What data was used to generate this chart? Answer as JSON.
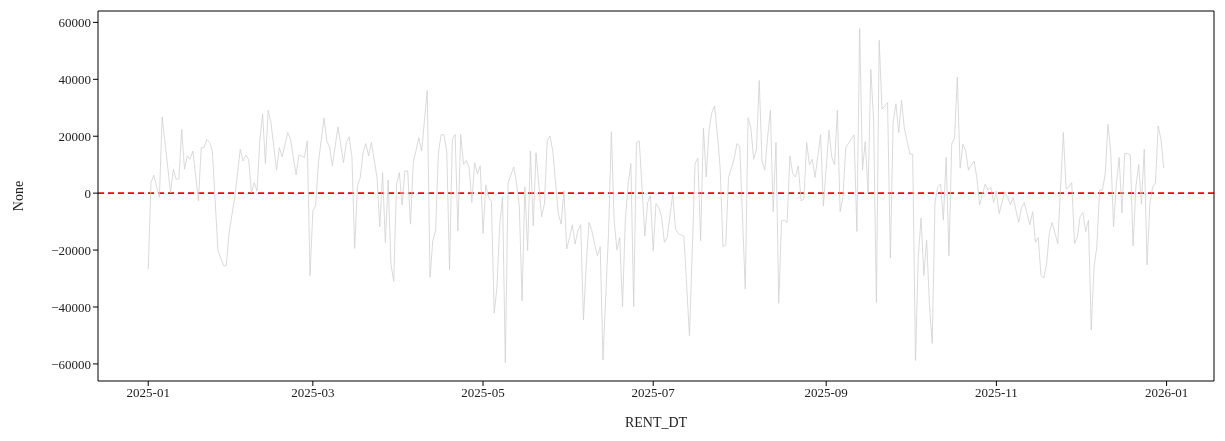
{
  "chart_data": {
    "type": "line",
    "xlabel": "RENT_DT",
    "ylabel": "None",
    "grid": false,
    "xlim": [
      "2024-12-14",
      "2026-01-18"
    ],
    "xticks": [
      "2025-01",
      "2025-03",
      "2025-05",
      "2025-07",
      "2025-09",
      "2025-11",
      "2026-01"
    ],
    "ylim": [
      -66000,
      64000
    ],
    "yticks": [
      -60000,
      -40000,
      -20000,
      0,
      20000,
      40000,
      60000
    ],
    "ref_lines": [
      {
        "axis": "y",
        "value": 0,
        "color": "#ff0000",
        "line_style": "dashed"
      }
    ],
    "x": [
      "2025-01-01",
      "2025-01-02",
      "2025-01-03",
      "2025-01-05",
      "2025-01-06",
      "2025-01-09",
      "2025-01-10",
      "2025-01-11",
      "2025-01-12",
      "2025-01-13",
      "2025-01-14",
      "2025-01-15",
      "2025-01-16",
      "2025-01-17",
      "2025-01-19",
      "2025-01-20",
      "2025-01-21",
      "2025-01-22",
      "2025-01-23",
      "2025-01-24",
      "2025-01-26",
      "2025-01-28",
      "2025-01-29",
      "2025-01-30",
      "2025-02-01",
      "2025-02-03",
      "2025-02-04",
      "2025-02-05",
      "2025-02-06",
      "2025-02-07",
      "2025-02-08",
      "2025-02-09",
      "2025-02-10",
      "2025-02-11",
      "2025-02-12",
      "2025-02-13",
      "2025-02-14",
      "2025-02-16",
      "2025-02-17",
      "2025-02-18",
      "2025-02-20",
      "2025-02-21",
      "2025-02-23",
      "2025-02-24",
      "2025-02-26",
      "2025-02-27",
      "2025-02-28",
      "2025-03-01",
      "2025-03-02",
      "2025-03-03",
      "2025-03-05",
      "2025-03-06",
      "2025-03-07",
      "2025-03-08",
      "2025-03-10",
      "2025-03-12",
      "2025-03-13",
      "2025-03-14",
      "2025-03-15",
      "2025-03-16",
      "2025-03-17",
      "2025-03-18",
      "2025-03-19",
      "2025-03-20",
      "2025-03-21",
      "2025-03-22",
      "2025-03-24",
      "2025-03-25",
      "2025-03-26",
      "2025-03-27",
      "2025-03-28",
      "2025-03-29",
      "2025-03-30",
      "2025-03-31",
      "2025-04-01",
      "2025-04-02",
      "2025-04-03",
      "2025-04-04",
      "2025-04-05",
      "2025-04-06",
      "2025-04-08",
      "2025-04-09",
      "2025-04-11",
      "2025-04-12",
      "2025-04-13",
      "2025-04-14",
      "2025-04-15",
      "2025-04-16",
      "2025-04-17",
      "2025-04-18",
      "2025-04-19",
      "2025-04-20",
      "2025-04-21",
      "2025-04-22",
      "2025-04-23",
      "2025-04-24",
      "2025-04-25",
      "2025-04-26",
      "2025-04-27",
      "2025-04-28",
      "2025-04-29",
      "2025-04-30",
      "2025-05-01",
      "2025-05-02",
      "2025-05-03",
      "2025-05-04",
      "2025-05-05",
      "2025-05-06",
      "2025-05-07",
      "2025-05-08",
      "2025-05-09",
      "2025-05-10",
      "2025-05-12",
      "2025-05-13",
      "2025-05-14",
      "2025-05-15",
      "2025-05-16",
      "2025-05-17",
      "2025-05-18",
      "2025-05-19",
      "2025-05-20",
      "2025-05-22",
      "2025-05-23",
      "2025-05-24",
      "2025-05-25",
      "2025-05-26",
      "2025-05-28",
      "2025-05-29",
      "2025-05-30",
      "2025-05-31",
      "2025-06-01",
      "2025-06-02",
      "2025-06-03",
      "2025-06-04",
      "2025-06-05",
      "2025-06-06",
      "2025-06-07",
      "2025-06-08",
      "2025-06-09",
      "2025-06-10",
      "2025-06-11",
      "2025-06-12",
      "2025-06-13",
      "2025-06-15",
      "2025-06-16",
      "2025-06-17",
      "2025-06-18",
      "2025-06-19",
      "2025-06-20",
      "2025-06-21",
      "2025-06-22",
      "2025-06-23",
      "2025-06-24",
      "2025-06-25",
      "2025-06-26",
      "2025-06-28",
      "2025-06-29",
      "2025-06-30",
      "2025-07-01",
      "2025-07-02",
      "2025-07-03",
      "2025-07-04",
      "2025-07-05",
      "2025-07-06",
      "2025-07-08",
      "2025-07-09",
      "2025-07-10",
      "2025-07-12",
      "2025-07-14",
      "2025-07-16",
      "2025-07-17",
      "2025-07-18",
      "2025-07-19",
      "2025-07-20",
      "2025-07-21",
      "2025-07-22",
      "2025-07-23",
      "2025-07-24",
      "2025-07-25",
      "2025-07-26",
      "2025-07-27",
      "2025-07-28",
      "2025-07-29",
      "2025-07-30",
      "2025-07-31",
      "2025-08-01",
      "2025-08-03",
      "2025-08-04",
      "2025-08-05",
      "2025-08-06",
      "2025-08-07",
      "2025-08-08",
      "2025-08-09",
      "2025-08-10",
      "2025-08-11",
      "2025-08-12",
      "2025-08-13",
      "2025-08-14",
      "2025-08-15",
      "2025-08-16",
      "2025-08-17",
      "2025-08-18",
      "2025-08-19",
      "2025-08-20",
      "2025-08-21",
      "2025-08-22",
      "2025-08-23",
      "2025-08-24",
      "2025-08-25",
      "2025-08-26",
      "2025-08-27",
      "2025-08-28",
      "2025-08-30",
      "2025-08-31",
      "2025-09-02",
      "2025-09-03",
      "2025-09-04",
      "2025-09-05",
      "2025-09-06",
      "2025-09-07",
      "2025-09-08",
      "2025-09-11",
      "2025-09-12",
      "2025-09-13",
      "2025-09-14",
      "2025-09-15",
      "2025-09-16",
      "2025-09-17",
      "2025-09-18",
      "2025-09-19",
      "2025-09-20",
      "2025-09-21",
      "2025-09-22",
      "2025-09-23",
      "2025-09-24",
      "2025-09-25",
      "2025-09-26",
      "2025-09-27",
      "2025-09-28",
      "2025-09-29",
      "2025-10-01",
      "2025-10-02",
      "2025-10-03",
      "2025-10-04",
      "2025-10-05",
      "2025-10-06",
      "2025-10-07",
      "2025-10-08",
      "2025-10-09",
      "2025-10-10",
      "2025-10-11",
      "2025-10-12",
      "2025-10-13",
      "2025-10-14",
      "2025-10-15",
      "2025-10-16",
      "2025-10-17",
      "2025-10-18",
      "2025-10-19",
      "2025-10-20",
      "2025-10-21",
      "2025-10-22",
      "2025-10-24",
      "2025-10-25",
      "2025-10-26",
      "2025-10-28",
      "2025-10-29",
      "2025-10-30",
      "2025-10-31",
      "2025-11-01",
      "2025-11-02",
      "2025-11-04",
      "2025-11-05",
      "2025-11-06",
      "2025-11-07",
      "2025-11-09",
      "2025-11-10",
      "2025-11-11",
      "2025-11-13",
      "2025-11-14",
      "2025-11-15",
      "2025-11-16",
      "2025-11-17",
      "2025-11-18",
      "2025-11-19",
      "2025-11-20",
      "2025-11-21",
      "2025-11-23",
      "2025-11-25",
      "2025-11-26",
      "2025-11-27",
      "2025-11-28",
      "2025-11-29",
      "2025-11-30",
      "2025-12-01",
      "2025-12-02",
      "2025-12-03",
      "2025-12-04",
      "2025-12-05",
      "2025-12-06",
      "2025-12-07",
      "2025-12-08",
      "2025-12-09",
      "2025-12-10",
      "2025-12-11",
      "2025-12-12",
      "2025-12-13",
      "2025-12-14",
      "2025-12-15",
      "2025-12-16",
      "2025-12-17",
      "2025-12-18",
      "2025-12-19",
      "2025-12-20",
      "2025-12-21",
      "2025-12-22",
      "2025-12-23",
      "2025-12-24",
      "2025-12-25",
      "2025-12-26",
      "2025-12-27",
      "2025-12-28",
      "2025-12-29",
      "2025-12-30",
      "2025-12-31"
    ],
    "series": [
      {
        "color": "#d0d0d0",
        "values": [
          -26700,
          3700,
          6300,
          -1500,
          26800,
          200,
          8400,
          4900,
          5000,
          22400,
          8400,
          13100,
          11900,
          14800,
          -2700,
          16000,
          16000,
          18900,
          17800,
          14800,
          -20200,
          -25500,
          -25500,
          -13800,
          -1500,
          15400,
          11300,
          13400,
          11900,
          200,
          3700,
          700,
          18400,
          27900,
          10400,
          29100,
          24800,
          8100,
          16000,
          12700,
          21300,
          18900,
          6400,
          13400,
          12500,
          18400,
          -29000,
          -6200,
          -4500,
          10700,
          26400,
          18400,
          16200,
          9600,
          23300,
          10700,
          17800,
          19800,
          13100,
          -19400,
          2600,
          5500,
          14200,
          17400,
          13100,
          17800,
          5500,
          -11800,
          7200,
          -17300,
          4600,
          -24900,
          -31000,
          3200,
          7200,
          -4100,
          7800,
          7800,
          -10900,
          10700,
          19500,
          14800,
          36100,
          -29600,
          -16700,
          -13200,
          14200,
          20500,
          20600,
          14800,
          -27000,
          18900,
          20600,
          -13200,
          20600,
          10100,
          11500,
          9200,
          -3300,
          10700,
          6700,
          9600,
          -14200,
          2900,
          -1500,
          -2900,
          -42200,
          -33100,
          -10900,
          -1500,
          -59500,
          3700,
          9200,
          3700,
          -4500,
          -37800,
          2200,
          -20200,
          14800,
          -11500,
          14200,
          -8300,
          -3900,
          18400,
          20100,
          14800,
          -7200,
          -10900,
          800,
          -19600,
          -15600,
          -11100,
          -17900,
          -13200,
          -11100,
          -44600,
          -24900,
          -10300,
          -13200,
          -17900,
          -22000,
          -18800,
          -58600,
          -13800,
          21600,
          -9500,
          -20000,
          -15600,
          -39900,
          -9500,
          3200,
          10400,
          -39900,
          17800,
          18400,
          -15000,
          -3300,
          -900,
          -20200,
          -3600,
          -5000,
          -8300,
          -17300,
          -15600,
          -400,
          -12600,
          -14200,
          -15200,
          -50100,
          10400,
          12300,
          -16700,
          22800,
          5700,
          21900,
          28300,
          30600,
          20700,
          8800,
          -18800,
          -18100,
          5500,
          8800,
          11900,
          17400,
          16600,
          -33700,
          26500,
          23000,
          11900,
          15400,
          39600,
          11300,
          8100,
          19500,
          29100,
          -6500,
          17800,
          -38700,
          -9700,
          -9500,
          -10300,
          13100,
          6900,
          5700,
          9600,
          -2700,
          -2100,
          17800,
          10000,
          11900,
          5500,
          20500,
          -4500,
          22100,
          12500,
          10000,
          29100,
          -6500,
          -1500,
          16000,
          20500,
          -13500,
          57900,
          8100,
          18100,
          200,
          43500,
          25600,
          -38400,
          53700,
          29500,
          30600,
          31800,
          -22800,
          24800,
          31400,
          21300,
          32600,
          23000,
          13700,
          13700,
          -58800,
          -22600,
          -8800,
          -29000,
          -16500,
          -38900,
          -52800,
          -3300,
          2200,
          3200,
          -9500,
          12500,
          -22000,
          17400,
          19300,
          40800,
          8800,
          17200,
          14800,
          8100,
          11300,
          5500,
          -4100,
          3200,
          1100,
          2100,
          -3300,
          700,
          -7200,
          500,
          -1500,
          -4100,
          -1500,
          -10300,
          -5100,
          -3300,
          -11100,
          -6500,
          -17300,
          -15600,
          -29000,
          -29800,
          -24900,
          -13800,
          -10300,
          -17700,
          21300,
          1400,
          2200,
          3700,
          -17700,
          -15600,
          -8300,
          -6800,
          -13500,
          -9500,
          -48100,
          -26100,
          -18800,
          1100,
          1100,
          6700,
          24200,
          14200,
          -11800,
          3200,
          12500,
          -6900,
          13900,
          13900,
          13400,
          -18500,
          2200,
          10100,
          -3900,
          15400,
          -25200,
          -3900,
          2100,
          3600,
          23600,
          18900,
          8800
        ]
      }
    ]
  }
}
